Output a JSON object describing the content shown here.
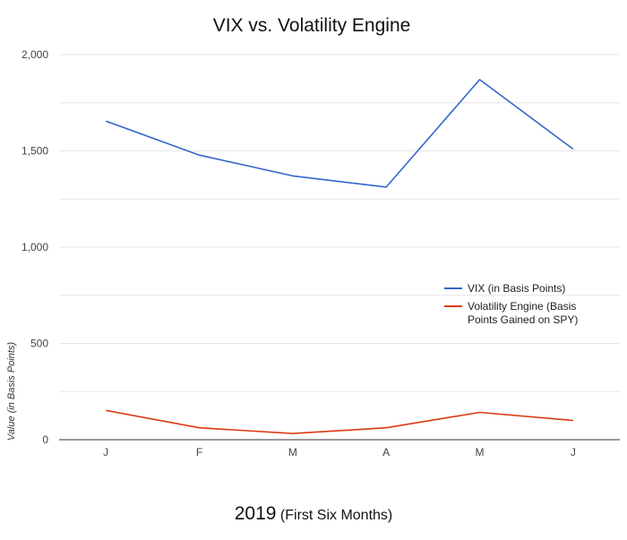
{
  "chart_data": {
    "type": "line",
    "title": "VIX vs. Volatility Engine",
    "xlabel_main": "2019",
    "xlabel_sub": "(First Six Months)",
    "ylabel": "Value (in Basis Points)",
    "categories": [
      "J",
      "F",
      "M",
      "A",
      "M",
      "J"
    ],
    "ylim": [
      0,
      2000
    ],
    "yticks": [
      {
        "value": 0,
        "label": "0"
      },
      {
        "value": 500,
        "label": "500"
      },
      {
        "value": 1000,
        "label": "1,000"
      },
      {
        "value": 1500,
        "label": "1,500"
      },
      {
        "value": 2000,
        "label": "2,000"
      }
    ],
    "grid": true,
    "legend_position": "right",
    "series": [
      {
        "name": "VIX (in Basis Points)",
        "color": "#3366cc",
        "values": [
          1655,
          1478,
          1370,
          1312,
          1870,
          1510
        ]
      },
      {
        "name": "Volatility Engine (Basis Points Gained on SPY)",
        "name_lines": [
          "Volatility Engine (Basis",
          "Points Gained on SPY)"
        ],
        "color": "#dc3912",
        "values": [
          152,
          62,
          32,
          62,
          142,
          100
        ]
      }
    ]
  }
}
